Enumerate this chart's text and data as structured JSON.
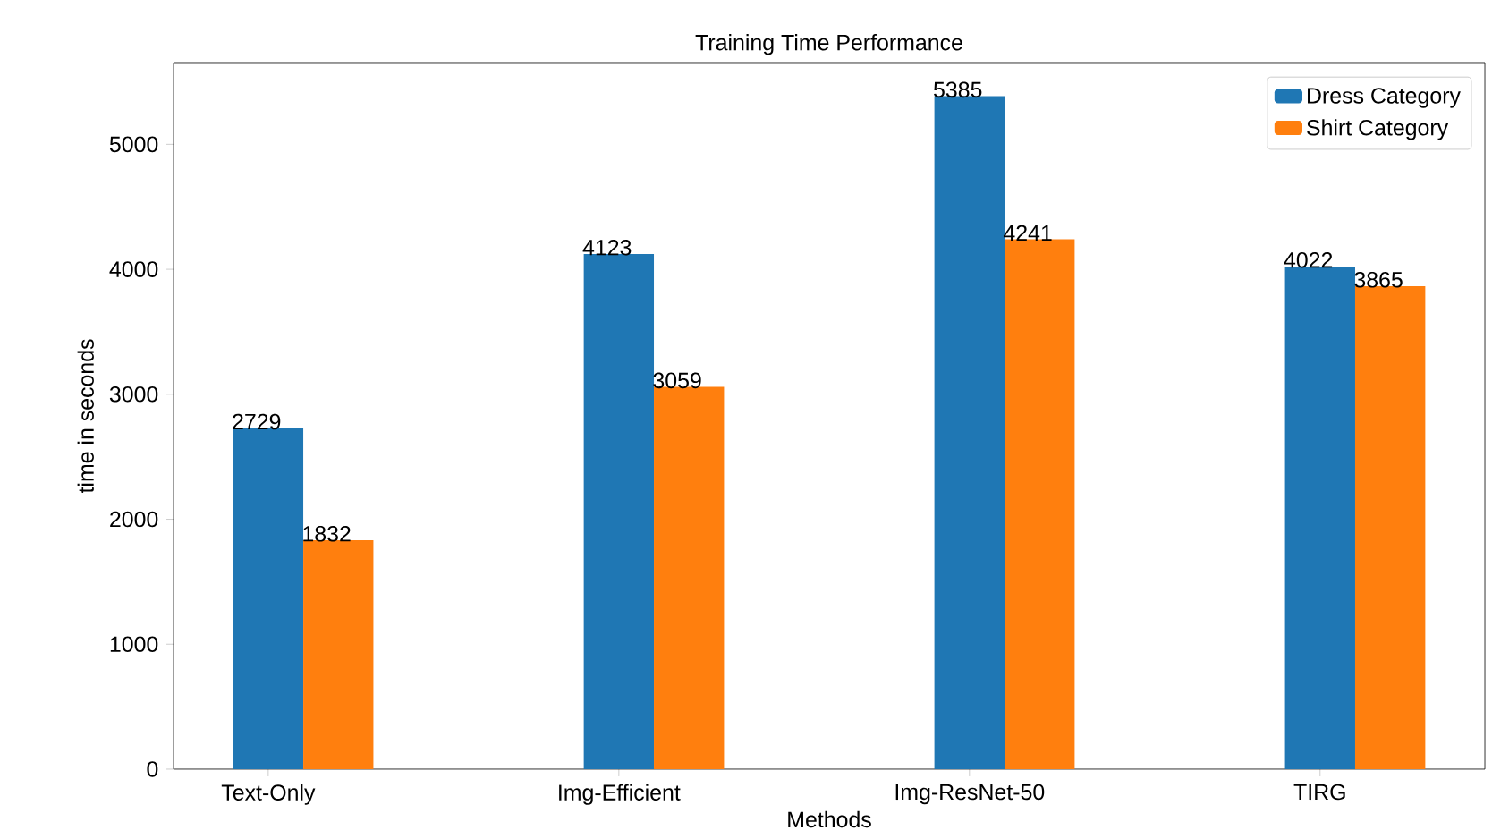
{
  "chart_data": {
    "type": "bar",
    "title": "Training Time Performance",
    "xlabel": "Methods",
    "ylabel": "time in seconds",
    "categories": [
      "Text-Only",
      "Img-Efficient",
      "Img-ResNet-50",
      "TIRG"
    ],
    "series": [
      {
        "name": "Dress Category",
        "color": "#1f77b4",
        "values": [
          2729,
          4123,
          5385,
          4022
        ]
      },
      {
        "name": "Shirt Category",
        "color": "#ff7f0e",
        "values": [
          1832,
          3059,
          4241,
          3865
        ]
      }
    ],
    "ylim": [
      0,
      5654
    ],
    "yticks": [
      0,
      1000,
      2000,
      3000,
      4000,
      5000
    ],
    "data_labels": true,
    "legend": "top right",
    "grid": false
  }
}
